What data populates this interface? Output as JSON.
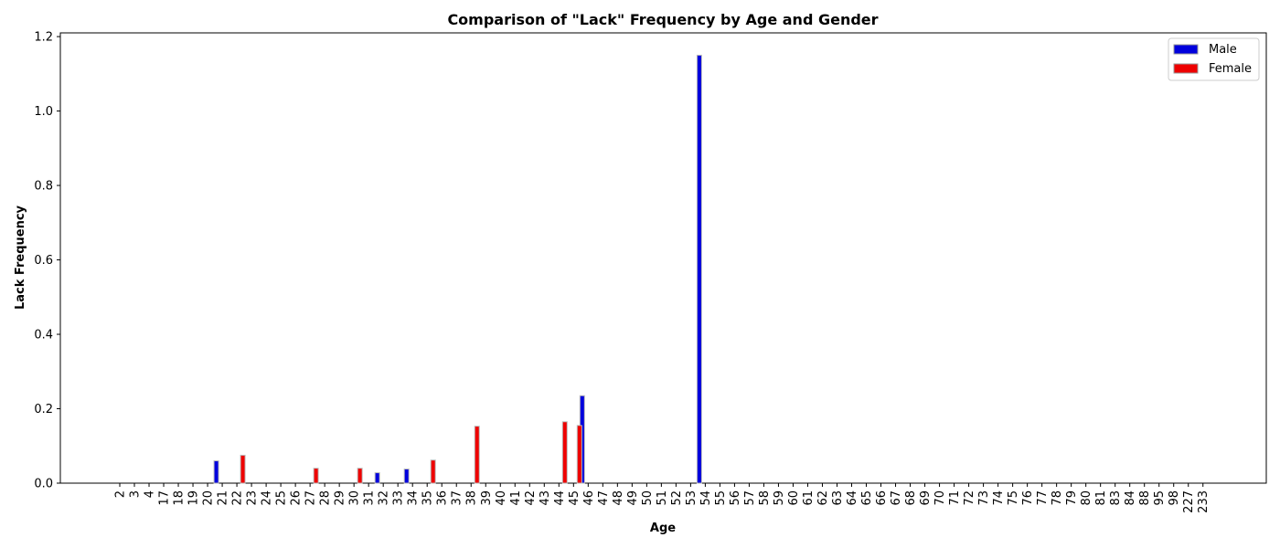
{
  "chart_data": {
    "type": "bar",
    "title": "Comparison of \"Lack\" Frequency by Age and Gender",
    "xlabel": "Age",
    "ylabel": "Lack Frequency",
    "ylim": [
      0,
      1.21
    ],
    "yticks": [
      0.0,
      0.2,
      0.4,
      0.6,
      0.8,
      1.0,
      1.2
    ],
    "ytick_labels": [
      "0.0",
      "0.2",
      "0.4",
      "0.6",
      "0.8",
      "1.0",
      "1.2"
    ],
    "grid": false,
    "legend_position": "top-right",
    "categories": [
      "2",
      "3",
      "4",
      "17",
      "18",
      "19",
      "20",
      "21",
      "22",
      "23",
      "24",
      "25",
      "26",
      "27",
      "28",
      "29",
      "30",
      "31",
      "32",
      "33",
      "34",
      "35",
      "36",
      "37",
      "38",
      "39",
      "40",
      "41",
      "42",
      "43",
      "44",
      "45",
      "46",
      "47",
      "48",
      "49",
      "50",
      "51",
      "52",
      "53",
      "54",
      "55",
      "56",
      "57",
      "58",
      "59",
      "60",
      "61",
      "62",
      "63",
      "64",
      "65",
      "66",
      "67",
      "68",
      "69",
      "70",
      "71",
      "72",
      "73",
      "74",
      "75",
      "76",
      "77",
      "78",
      "79",
      "80",
      "81",
      "83",
      "84",
      "88",
      "95",
      "98",
      "227",
      "233"
    ],
    "series": [
      {
        "name": "Male",
        "color": "#0000dd",
        "values": [
          0,
          0,
          0,
          0,
          0,
          0,
          0,
          0.06,
          0,
          0,
          0,
          0,
          0,
          0,
          0,
          0,
          0,
          0,
          0.028,
          0,
          0.038,
          0,
          0,
          0,
          0,
          0,
          0,
          0,
          0,
          0,
          0,
          0,
          0.235,
          0,
          0,
          0,
          0,
          0,
          0,
          0,
          1.15,
          0,
          0,
          0,
          0,
          0,
          0,
          0,
          0,
          0,
          0,
          0,
          0,
          0,
          0,
          0,
          0,
          0,
          0,
          0,
          0,
          0,
          0,
          0,
          0,
          0,
          0,
          0,
          0,
          0,
          0,
          0,
          0,
          0,
          0
        ]
      },
      {
        "name": "Female",
        "color": "#ee0000",
        "values": [
          0,
          0,
          0,
          0,
          0,
          0,
          0,
          0,
          0.075,
          0,
          0,
          0,
          0,
          0.04,
          0,
          0,
          0.04,
          0,
          0,
          0,
          0,
          0.062,
          0,
          0,
          0.153,
          0,
          0,
          0,
          0,
          0,
          0.165,
          0.155,
          0,
          0,
          0,
          0,
          0,
          0,
          0,
          0,
          0,
          0,
          0,
          0,
          0,
          0,
          0,
          0,
          0,
          0,
          0,
          0,
          0,
          0,
          0,
          0,
          0,
          0,
          0,
          0,
          0,
          0,
          0,
          0,
          0,
          0,
          0,
          0,
          0,
          0,
          0,
          0,
          0,
          0,
          0
        ]
      }
    ]
  }
}
